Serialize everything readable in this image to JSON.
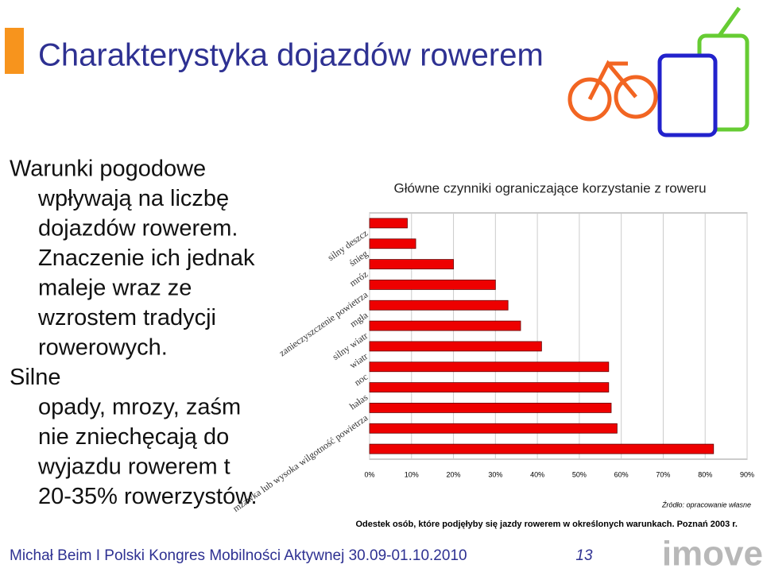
{
  "slide": {
    "title": "Charakterystyka dojazdów rowerem",
    "body": [
      "Warunki pogodowe",
      "wpływają na liczbę",
      "dojazdów rowerem.",
      "Znaczenie ich jednak",
      "maleje wraz ze",
      "wzrostem tradycji",
      "rowerowych.",
      "Silne",
      "opady, mrozy, zaśm",
      "nie zniechęcają do",
      "wyjazdu rowerem t",
      "20-35% rowerzystów."
    ],
    "footer": "Michał Beim I Polski Kongres Mobilności Aktywnej 30.09-01.10.2010",
    "page": "13",
    "logo": "imove",
    "source": "Źródło: opracowanie własne",
    "caption": "Odestek osób, które podjęłyby się jazdy rowerem w określonych warunkach. Poznań 2003 r."
  },
  "chart_data": {
    "type": "hbar",
    "title": "Główne czynniki ograniczające korzystanie z roweru",
    "categories": [
      "silny deszcz",
      "śnieg",
      "mróz",
      "zanieczyszczenie powietrza",
      "mgła",
      "silny wiatr",
      "wiatr",
      "noc",
      "hałas",
      "mżawka lub wysoka wilgotność powietrza",
      null,
      null
    ],
    "values": [
      9,
      11,
      20,
      30,
      33,
      36,
      41,
      57,
      57,
      57.6,
      59,
      82
    ],
    "color": "#ee0000",
    "xlim": [
      0,
      90
    ],
    "xticks": [
      {
        "value": 0,
        "label": "0%"
      },
      {
        "value": 10,
        "label": "10%"
      },
      {
        "value": 20,
        "label": "20%"
      },
      {
        "value": 30,
        "label": "30%"
      },
      {
        "value": 40,
        "label": "40%"
      },
      {
        "value": 50,
        "label": "50%"
      },
      {
        "value": 60,
        "label": "60%"
      },
      {
        "value": 70,
        "label": "70%"
      },
      {
        "value": 80,
        "label": "80%"
      },
      {
        "value": 90,
        "label": "90%"
      }
    ],
    "grid": true
  }
}
